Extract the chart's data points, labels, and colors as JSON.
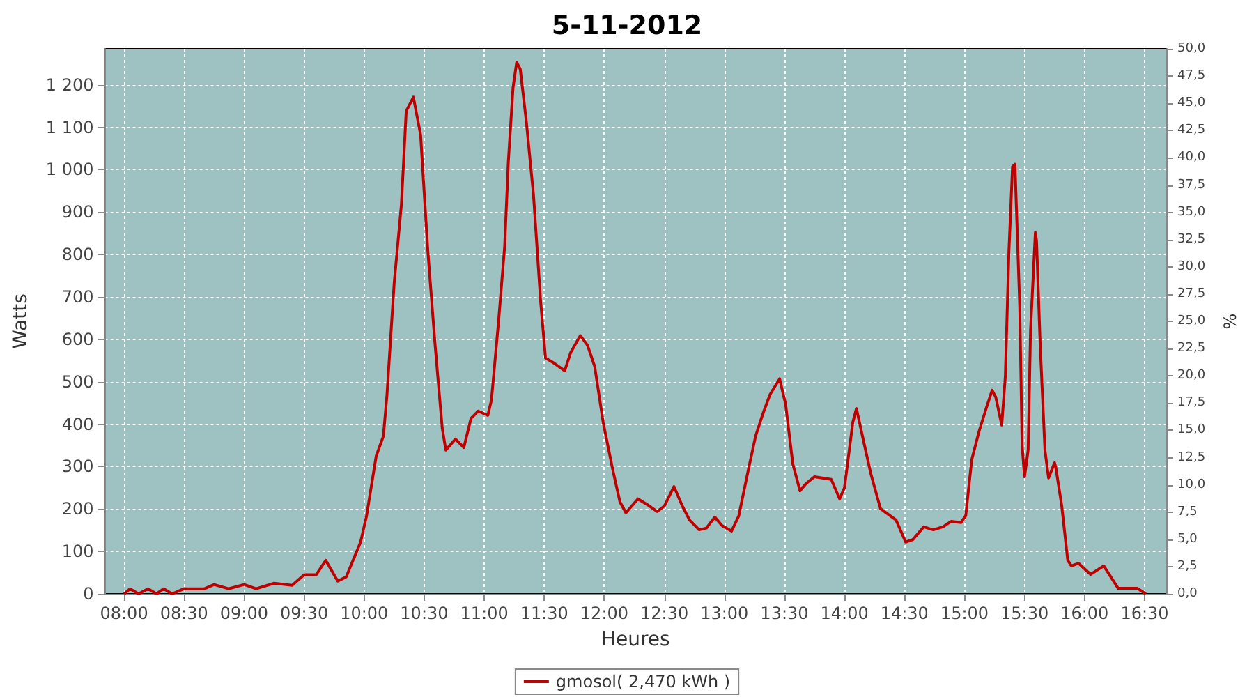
{
  "chart_data": {
    "type": "line",
    "title": "5-11-2012",
    "xlabel": "Heures",
    "ylabel": "Watts",
    "y2label": "%",
    "xlim": [
      7.84,
      16.68
    ],
    "xticks": [
      {
        "value": 8,
        "label": "08:00"
      },
      {
        "value": 8.5,
        "label": "08:30"
      },
      {
        "value": 9,
        "label": "09:00"
      },
      {
        "value": 9.5,
        "label": "09:30"
      },
      {
        "value": 10,
        "label": "10:00"
      },
      {
        "value": 10.5,
        "label": "10:30"
      },
      {
        "value": 11,
        "label": "11:00"
      },
      {
        "value": 11.5,
        "label": "11:30"
      },
      {
        "value": 12,
        "label": "12:00"
      },
      {
        "value": 12.5,
        "label": "12:30"
      },
      {
        "value": 13,
        "label": "13:00"
      },
      {
        "value": 13.5,
        "label": "13:30"
      },
      {
        "value": 14,
        "label": "14:00"
      },
      {
        "value": 14.5,
        "label": "14:30"
      },
      {
        "value": 15,
        "label": "15:00"
      },
      {
        "value": 15.5,
        "label": "15:30"
      },
      {
        "value": 16,
        "label": "16:00"
      },
      {
        "value": 16.5,
        "label": "16:30"
      }
    ],
    "ylim": [
      0,
      1285
    ],
    "yticks": [
      0,
      100,
      200,
      300,
      400,
      500,
      600,
      700,
      800,
      900,
      {
        "value": 1000,
        "label": "1 000"
      },
      {
        "value": 1100,
        "label": "1 100"
      },
      {
        "value": 1200,
        "label": "1 200"
      }
    ],
    "y2lim": [
      0,
      50
    ],
    "y2ticks": [
      {
        "value": 0,
        "label": "0,0"
      },
      {
        "value": 2.5,
        "label": "2,5"
      },
      {
        "value": 5,
        "label": "5,0"
      },
      {
        "value": 7.5,
        "label": "7,5"
      },
      {
        "value": 10,
        "label": "10,0"
      },
      {
        "value": 12.5,
        "label": "12,5"
      },
      {
        "value": 15,
        "label": "15,0"
      },
      {
        "value": 17.5,
        "label": "17,5"
      },
      {
        "value": 20,
        "label": "20,0"
      },
      {
        "value": 22.5,
        "label": "22,5"
      },
      {
        "value": 25,
        "label": "25,0"
      },
      {
        "value": 27.5,
        "label": "27,5"
      },
      {
        "value": 30,
        "label": "30,0"
      },
      {
        "value": 32.5,
        "label": "32,5"
      },
      {
        "value": 35,
        "label": "35,0"
      },
      {
        "value": 37.5,
        "label": "37,5"
      },
      {
        "value": 40,
        "label": "40,0"
      },
      {
        "value": 42.5,
        "label": "42,5"
      },
      {
        "value": 45,
        "label": "45,0"
      },
      {
        "value": 47.5,
        "label": "47,5"
      },
      {
        "value": 50,
        "label": "50,0"
      }
    ],
    "grid": true,
    "legend": "bottom",
    "marker": "none",
    "line_style": "solid",
    "series": [
      {
        "name": "gmosol( 2,470 kWh )",
        "color": "#c00000",
        "x": [
          8.0,
          8.05,
          8.12,
          8.2,
          8.27,
          8.33,
          8.4,
          8.5,
          8.67,
          8.75,
          8.87,
          9.0,
          9.1,
          9.25,
          9.4,
          9.5,
          9.6,
          9.68,
          9.78,
          9.85,
          9.97,
          10.02,
          10.1,
          10.16,
          10.19,
          10.25,
          10.31,
          10.35,
          10.41,
          10.47,
          10.53,
          10.59,
          10.65,
          10.68,
          10.76,
          10.83,
          10.89,
          10.95,
          11.03,
          11.06,
          11.12,
          11.17,
          11.2,
          11.24,
          11.27,
          11.3,
          11.35,
          11.41,
          11.47,
          11.51,
          11.57,
          11.67,
          11.72,
          11.8,
          11.86,
          11.92,
          11.99,
          12.07,
          12.13,
          12.18,
          12.28,
          12.36,
          12.44,
          12.5,
          12.58,
          12.65,
          12.71,
          12.79,
          12.85,
          12.92,
          12.98,
          13.06,
          13.12,
          13.2,
          13.26,
          13.32,
          13.38,
          13.46,
          13.51,
          13.57,
          13.63,
          13.68,
          13.75,
          13.89,
          13.96,
          14.0,
          14.07,
          14.1,
          14.16,
          14.22,
          14.3,
          14.43,
          14.51,
          14.57,
          14.66,
          14.74,
          14.82,
          14.89,
          14.97,
          15.01,
          15.06,
          15.12,
          15.18,
          15.23,
          15.26,
          15.31,
          15.34,
          15.37,
          15.4,
          15.42,
          15.46,
          15.48,
          15.5,
          15.53,
          15.55,
          15.59,
          15.6,
          15.63,
          15.67,
          15.7,
          15.75,
          15.76,
          15.81,
          15.86,
          15.89,
          15.95,
          16.05,
          16.16,
          16.28,
          16.44,
          16.51
        ],
        "values": [
          0,
          12,
          0,
          12,
          0,
          12,
          0,
          12,
          12,
          22,
          12,
          22,
          12,
          25,
          20,
          45,
          45,
          79,
          30,
          40,
          122,
          184,
          325,
          372,
          470,
          733,
          918,
          1138,
          1171,
          1082,
          809,
          589,
          391,
          339,
          365,
          345,
          414,
          431,
          421,
          457,
          645,
          819,
          1016,
          1194,
          1253,
          1237,
          1115,
          941,
          688,
          556,
          546,
          526,
          569,
          609,
          586,
          536,
          405,
          293,
          217,
          191,
          224,
          210,
          194,
          207,
          253,
          207,
          174,
          151,
          155,
          181,
          161,
          148,
          184,
          293,
          372,
          424,
          470,
          507,
          447,
          306,
          243,
          260,
          276,
          270,
          224,
          250,
          405,
          437,
          359,
          283,
          201,
          174,
          122,
          128,
          158,
          151,
          158,
          171,
          168,
          184,
          316,
          382,
          437,
          480,
          464,
          398,
          513,
          809,
          1007,
          1013,
          678,
          349,
          276,
          339,
          622,
          852,
          832,
          589,
          339,
          273,
          309,
          299,
          207,
          79,
          66,
          72,
          46,
          66,
          13,
          13,
          0
        ]
      }
    ]
  }
}
